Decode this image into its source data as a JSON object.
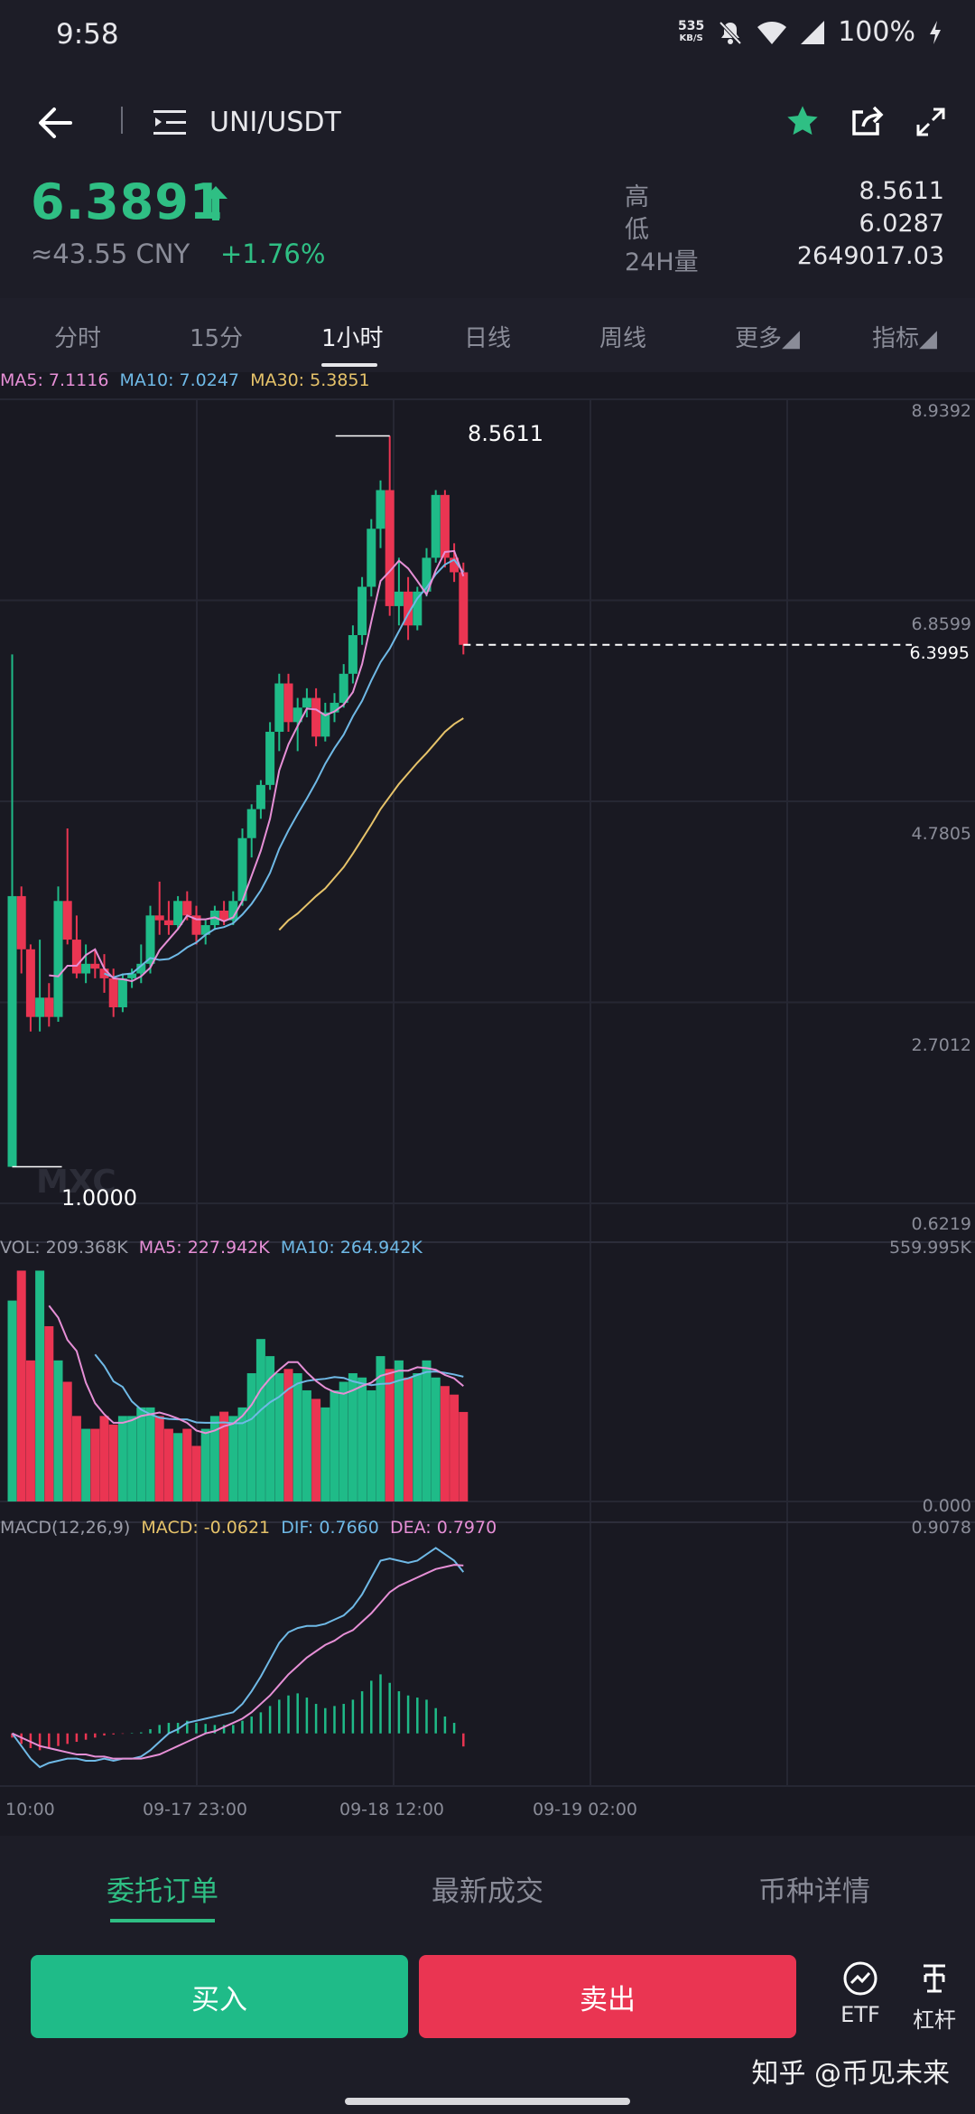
{
  "status_bar": {
    "time": "9:58",
    "net_speed": "535",
    "net_unit": "KB/S",
    "battery": "100%"
  },
  "header": {
    "pair": "UNI/USDT",
    "icons": [
      "back-arrow-icon",
      "menu-list-icon",
      "star-icon",
      "share-icon",
      "fullscreen-icon"
    ]
  },
  "ticker": {
    "price": "6.3891",
    "cny": "≈43.55 CNY",
    "change": "+1.76%",
    "high_label": "高",
    "high": "8.5611",
    "low_label": "低",
    "low": "6.0287",
    "volume_label": "24H量",
    "volume": "2649017.03"
  },
  "tabs": [
    {
      "label": "分时"
    },
    {
      "label": "15分"
    },
    {
      "label": "1小时"
    },
    {
      "label": "日线"
    },
    {
      "label": "周线"
    },
    {
      "label": "更多◢"
    },
    {
      "label": "指标◢"
    }
  ],
  "active_tab": "1小时",
  "legends": {
    "ma5": "MA5: 7.1116",
    "ma10": "MA10: 7.0247",
    "ma30": "MA30: 5.3851",
    "vol": "VOL: 209.368K",
    "vol_ma5": "MA5: 227.942K",
    "vol_ma10": "MA10: 264.942K",
    "macd_params": "MACD(12,26,9)",
    "macd": "MACD: -0.0621",
    "dif": "DIF: 0.7660",
    "dea": "DEA: 0.7970"
  },
  "price_axis": [
    "8.9392",
    "6.8599",
    "4.7805",
    "2.7012",
    "0.6219"
  ],
  "current_price_tag": "6.3995",
  "high_marker": "8.5611",
  "low_marker": "1.0000",
  "chart_watermark": "MXC",
  "volume_axis": [
    "559.995K",
    "0.000"
  ],
  "macd_axis": [
    "0.9078"
  ],
  "time_axis": [
    "10:00",
    "09-17 23:00",
    "09-18 12:00",
    "09-19 02:00"
  ],
  "colors": {
    "up": "#1fbb88",
    "down": "#ea3552",
    "ma5": "#e68fd6",
    "ma10": "#6fb9e6",
    "ma30": "#e6c36a"
  },
  "chart_data": {
    "type": "candlestick",
    "title": "UNI/USDT 1小时",
    "ylim": [
      0.6219,
      8.9392
    ],
    "ohlc": [
      {
        "o": 1.0,
        "h": 6.3,
        "l": 1.0,
        "c": 3.8
      },
      {
        "o": 3.8,
        "h": 3.9,
        "l": 3.0,
        "c": 3.25
      },
      {
        "o": 3.25,
        "h": 3.3,
        "l": 2.4,
        "c": 2.55
      },
      {
        "o": 2.55,
        "h": 3.35,
        "l": 2.4,
        "c": 2.75
      },
      {
        "o": 2.75,
        "h": 2.9,
        "l": 2.45,
        "c": 2.55
      },
      {
        "o": 2.55,
        "h": 3.9,
        "l": 2.5,
        "c": 3.75
      },
      {
        "o": 3.75,
        "h": 4.5,
        "l": 3.3,
        "c": 3.35
      },
      {
        "o": 3.35,
        "h": 3.6,
        "l": 2.95,
        "c": 3.0
      },
      {
        "o": 3.0,
        "h": 3.3,
        "l": 2.9,
        "c": 3.1
      },
      {
        "o": 3.1,
        "h": 3.25,
        "l": 2.95,
        "c": 3.05
      },
      {
        "o": 3.05,
        "h": 3.2,
        "l": 2.8,
        "c": 2.95
      },
      {
        "o": 2.95,
        "h": 3.05,
        "l": 2.55,
        "c": 2.65
      },
      {
        "o": 2.65,
        "h": 3.0,
        "l": 2.6,
        "c": 2.95
      },
      {
        "o": 2.95,
        "h": 3.05,
        "l": 2.85,
        "c": 3.0
      },
      {
        "o": 3.0,
        "h": 3.3,
        "l": 2.9,
        "c": 3.1
      },
      {
        "o": 3.1,
        "h": 3.7,
        "l": 3.0,
        "c": 3.6
      },
      {
        "o": 3.6,
        "h": 3.95,
        "l": 3.4,
        "c": 3.55
      },
      {
        "o": 3.55,
        "h": 3.75,
        "l": 3.4,
        "c": 3.5
      },
      {
        "o": 3.5,
        "h": 3.8,
        "l": 3.45,
        "c": 3.75
      },
      {
        "o": 3.75,
        "h": 3.85,
        "l": 3.55,
        "c": 3.6
      },
      {
        "o": 3.6,
        "h": 3.7,
        "l": 3.3,
        "c": 3.4
      },
      {
        "o": 3.4,
        "h": 3.55,
        "l": 3.3,
        "c": 3.5
      },
      {
        "o": 3.5,
        "h": 3.7,
        "l": 3.45,
        "c": 3.65
      },
      {
        "o": 3.65,
        "h": 3.75,
        "l": 3.5,
        "c": 3.55
      },
      {
        "o": 3.55,
        "h": 3.85,
        "l": 3.5,
        "c": 3.75
      },
      {
        "o": 3.75,
        "h": 4.5,
        "l": 3.7,
        "c": 4.4
      },
      {
        "o": 4.4,
        "h": 4.75,
        "l": 4.2,
        "c": 4.7
      },
      {
        "o": 4.7,
        "h": 5.0,
        "l": 4.6,
        "c": 4.95
      },
      {
        "o": 4.95,
        "h": 5.6,
        "l": 4.9,
        "c": 5.5
      },
      {
        "o": 5.5,
        "h": 6.1,
        "l": 5.3,
        "c": 6.0
      },
      {
        "o": 6.0,
        "h": 6.1,
        "l": 5.5,
        "c": 5.6
      },
      {
        "o": 5.6,
        "h": 5.85,
        "l": 5.3,
        "c": 5.75
      },
      {
        "o": 5.75,
        "h": 5.95,
        "l": 5.65,
        "c": 5.85
      },
      {
        "o": 5.85,
        "h": 5.95,
        "l": 5.35,
        "c": 5.45
      },
      {
        "o": 5.45,
        "h": 5.8,
        "l": 5.4,
        "c": 5.7
      },
      {
        "o": 5.7,
        "h": 5.9,
        "l": 5.6,
        "c": 5.8
      },
      {
        "o": 5.8,
        "h": 6.2,
        "l": 5.75,
        "c": 6.1
      },
      {
        "o": 6.1,
        "h": 6.6,
        "l": 6.0,
        "c": 6.5
      },
      {
        "o": 6.5,
        "h": 7.1,
        "l": 6.4,
        "c": 7.0
      },
      {
        "o": 7.0,
        "h": 7.7,
        "l": 6.9,
        "c": 7.6
      },
      {
        "o": 7.6,
        "h": 8.1,
        "l": 7.4,
        "c": 8.0
      },
      {
        "o": 8.0,
        "h": 8.5611,
        "l": 6.7,
        "c": 6.8
      },
      {
        "o": 6.8,
        "h": 7.3,
        "l": 6.6,
        "c": 6.95
      },
      {
        "o": 6.95,
        "h": 7.1,
        "l": 6.45,
        "c": 6.6
      },
      {
        "o": 6.6,
        "h": 7.0,
        "l": 6.55,
        "c": 6.95
      },
      {
        "o": 6.95,
        "h": 7.4,
        "l": 6.9,
        "c": 7.3
      },
      {
        "o": 7.3,
        "h": 8.0,
        "l": 7.25,
        "c": 7.95
      },
      {
        "o": 7.95,
        "h": 8.0,
        "l": 7.2,
        "c": 7.3
      },
      {
        "o": 7.3,
        "h": 7.45,
        "l": 7.05,
        "c": 7.15
      },
      {
        "o": 7.15,
        "h": 7.25,
        "l": 6.3,
        "c": 6.3995
      }
    ],
    "ma5": [
      null,
      null,
      null,
      null,
      2.98,
      2.97,
      3.08,
      3.08,
      3.19,
      3.25,
      3.05,
      2.95,
      2.94,
      2.92,
      2.97,
      3.06,
      3.24,
      3.35,
      3.46,
      3.6,
      3.56,
      3.56,
      3.58,
      3.54,
      3.58,
      3.75,
      4.01,
      4.27,
      4.6,
      5.1,
      5.37,
      5.56,
      5.74,
      5.73,
      5.67,
      5.71,
      5.78,
      5.91,
      6.2,
      6.64,
      7.06,
      7.16,
      7.27,
      7.19,
      7.06,
      6.92,
      7.17,
      7.36,
      7.37,
      7.11
    ],
    "ma10": [
      null,
      null,
      null,
      null,
      null,
      null,
      null,
      null,
      null,
      null,
      3.0,
      2.96,
      2.99,
      3.0,
      3.08,
      3.16,
      3.14,
      3.15,
      3.2,
      3.27,
      3.32,
      3.4,
      3.46,
      3.48,
      3.52,
      3.61,
      3.72,
      3.86,
      4.04,
      4.29,
      4.48,
      4.65,
      4.81,
      4.98,
      5.17,
      5.33,
      5.47,
      5.66,
      5.82,
      6.03,
      6.22,
      6.36,
      6.54,
      6.72,
      6.88,
      6.99,
      7.13,
      7.23,
      7.28,
      7.15
    ],
    "ma30": [
      null,
      null,
      null,
      null,
      null,
      null,
      null,
      null,
      null,
      null,
      null,
      null,
      null,
      null,
      null,
      null,
      null,
      null,
      null,
      null,
      null,
      null,
      null,
      null,
      null,
      null,
      null,
      null,
      null,
      3.45,
      3.55,
      3.62,
      3.71,
      3.8,
      3.88,
      3.99,
      4.1,
      4.24,
      4.39,
      4.54,
      4.7,
      4.83,
      4.96,
      5.07,
      5.18,
      5.28,
      5.39,
      5.5,
      5.58,
      5.64
    ],
    "volume": {
      "ylim": [
        0,
        559.995
      ],
      "values": [
        470,
        540,
        330,
        540,
        410,
        330,
        280,
        200,
        170,
        170,
        200,
        180,
        200,
        200,
        220,
        220,
        200,
        170,
        160,
        170,
        130,
        170,
        200,
        210,
        200,
        220,
        300,
        380,
        340,
        300,
        310,
        300,
        260,
        240,
        220,
        260,
        280,
        300,
        290,
        260,
        340,
        310,
        330,
        290,
        300,
        330,
        290,
        270,
        250,
        209.368
      ]
    },
    "macd": {
      "ylim": [
        -0.25,
        0.9078
      ],
      "hist": [
        -0.02,
        -0.05,
        -0.07,
        -0.08,
        -0.07,
        -0.06,
        -0.05,
        -0.04,
        -0.03,
        -0.02,
        -0.01,
        -0.005,
        -0.002,
        0.002,
        0.005,
        0.02,
        0.04,
        0.05,
        0.05,
        0.06,
        0.05,
        0.045,
        0.04,
        0.04,
        0.04,
        0.06,
        0.08,
        0.1,
        0.13,
        0.16,
        0.18,
        0.19,
        0.17,
        0.14,
        0.12,
        0.13,
        0.14,
        0.16,
        0.2,
        0.25,
        0.28,
        0.24,
        0.2,
        0.18,
        0.17,
        0.16,
        0.12,
        0.08,
        0.05,
        -0.0621
      ],
      "dif": [
        0.0,
        -0.06,
        -0.12,
        -0.16,
        -0.14,
        -0.13,
        -0.12,
        -0.12,
        -0.13,
        -0.13,
        -0.12,
        -0.13,
        -0.12,
        -0.12,
        -0.11,
        -0.08,
        -0.04,
        0.0,
        0.02,
        0.05,
        0.06,
        0.07,
        0.08,
        0.09,
        0.1,
        0.14,
        0.2,
        0.27,
        0.35,
        0.43,
        0.48,
        0.5,
        0.51,
        0.51,
        0.52,
        0.54,
        0.56,
        0.6,
        0.66,
        0.74,
        0.82,
        0.83,
        0.82,
        0.81,
        0.82,
        0.85,
        0.88,
        0.85,
        0.82,
        0.766
      ],
      "dea": [
        0.0,
        -0.02,
        -0.04,
        -0.06,
        -0.07,
        -0.08,
        -0.09,
        -0.1,
        -0.1,
        -0.11,
        -0.11,
        -0.12,
        -0.12,
        -0.12,
        -0.12,
        -0.11,
        -0.1,
        -0.08,
        -0.06,
        -0.04,
        -0.02,
        0.0,
        0.01,
        0.03,
        0.05,
        0.07,
        0.1,
        0.14,
        0.18,
        0.23,
        0.28,
        0.32,
        0.36,
        0.39,
        0.42,
        0.44,
        0.47,
        0.49,
        0.53,
        0.57,
        0.62,
        0.67,
        0.7,
        0.72,
        0.74,
        0.76,
        0.78,
        0.79,
        0.8,
        0.797
      ]
    }
  },
  "bottom_tabs": [
    {
      "label": "委托订单"
    },
    {
      "label": "最新成交"
    },
    {
      "label": "币种详情"
    }
  ],
  "actions": {
    "buy": "买入",
    "sell": "卖出",
    "etf": "ETF",
    "leverage": "杠杆"
  },
  "watermark": "知乎 @币见未来"
}
